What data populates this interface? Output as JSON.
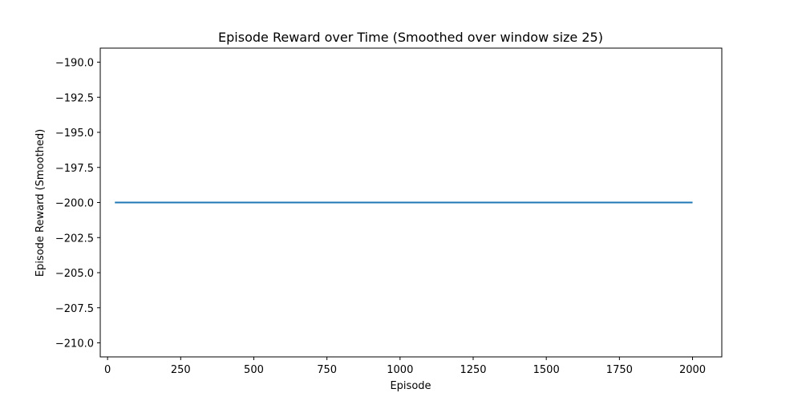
{
  "chart_data": {
    "type": "line",
    "title": "Episode Reward over Time (Smoothed over window size 25)",
    "xlabel": "Episode",
    "ylabel": "Episode Reward (Smoothed)",
    "xlim": [
      -25,
      2100
    ],
    "ylim": [
      -211,
      -189
    ],
    "xticks": [
      0,
      250,
      500,
      750,
      1000,
      1250,
      1500,
      1750,
      2000
    ],
    "yticks": [
      -190.0,
      -192.5,
      -195.0,
      -197.5,
      -200.0,
      -202.5,
      -205.0,
      -207.5,
      -210.0
    ],
    "ytick_labels": [
      "−190.0",
      "−192.5",
      "−195.0",
      "−197.5",
      "−200.0",
      "−202.5",
      "−205.0",
      "−207.5",
      "−210.0"
    ],
    "grid": false,
    "series": [
      {
        "color": "#1f77b4",
        "x": [
          25,
          2000
        ],
        "y": [
          -200.0,
          -200.0
        ]
      }
    ]
  }
}
